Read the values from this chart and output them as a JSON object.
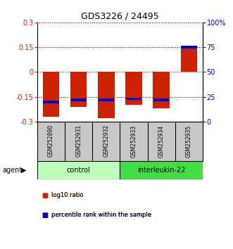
{
  "title": "GDS3226 / 24495",
  "samples": [
    "GSM252890",
    "GSM252931",
    "GSM252932",
    "GSM252933",
    "GSM252934",
    "GSM252935"
  ],
  "log10_ratio": [
    -0.27,
    -0.21,
    -0.28,
    -0.2,
    -0.22,
    0.15
  ],
  "percentile_rank": [
    20,
    22,
    22,
    23,
    22,
    75
  ],
  "groups": [
    {
      "label": "control",
      "indices": [
        0,
        1,
        2
      ]
    },
    {
      "label": "interleukin-22",
      "indices": [
        3,
        4,
        5
      ]
    }
  ],
  "ylim_left": [
    -0.3,
    0.3
  ],
  "ylim_right": [
    0,
    100
  ],
  "yticks_left": [
    -0.3,
    -0.15,
    0,
    0.15,
    0.3
  ],
  "yticks_right": [
    0,
    25,
    50,
    75,
    100
  ],
  "ytick_labels_left": [
    "-0.3",
    "-0.15",
    "0",
    "0.15",
    "0.3"
  ],
  "ytick_labels_right": [
    "0",
    "25",
    "50",
    "75",
    "100%"
  ],
  "bar_width": 0.6,
  "red_color": "#cc2200",
  "blue_color": "#0000cc",
  "legend_items": [
    "log10 ratio",
    "percentile rank within the sample"
  ],
  "bg_color": "#ffffff",
  "sample_bg": "#c8c8c8",
  "control_color": "#bbffbb",
  "interleukin_color": "#44dd44"
}
